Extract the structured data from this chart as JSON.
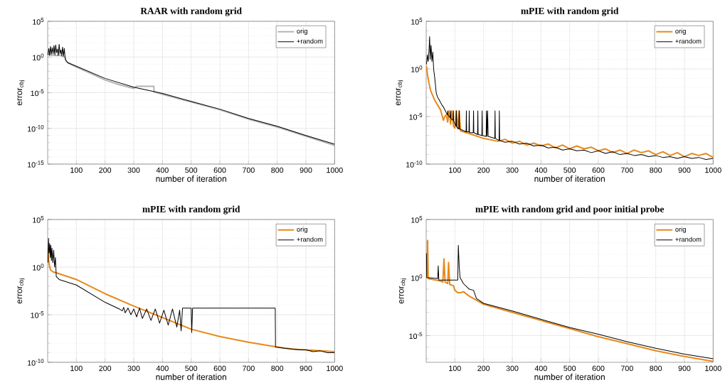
{
  "chart_data": [
    {
      "type": "line",
      "title": "RAAR with random grid",
      "xlabel": "number of iteration",
      "ylabel": "error$_{obj}$",
      "log": "y",
      "grid": true,
      "legend": "top right",
      "marker": "none",
      "line_style": "solid",
      "xlim": [
        0,
        1000
      ],
      "xticks": [
        100,
        200,
        300,
        400,
        500,
        600,
        700,
        800,
        900,
        1000
      ],
      "ylim": [
        1e-15,
        100000
      ],
      "yticks": [
        {
          "value": 1e-15,
          "label": "10$^{-15}$"
        },
        {
          "value": 1e-10,
          "label": "10$^{-10}$"
        },
        {
          "value": 1e-05,
          "label": "10$^{-5}$"
        },
        {
          "value": 1,
          "label": "10$^{0}$"
        },
        {
          "value": 100000,
          "label": "10$^{5}$"
        }
      ],
      "series": [
        {
          "name": "orig",
          "color": "#b3b3b3",
          "x": [
            1,
            5,
            10,
            15,
            20,
            30,
            40,
            50,
            60,
            65,
            70,
            100,
            150,
            200,
            250,
            300,
            310,
            370,
            371,
            400,
            500,
            600,
            700,
            800,
            900,
            1000
          ],
          "values": [
            3,
            2,
            2.5,
            1.6,
            2,
            1.6,
            2,
            1.3,
            1,
            0.25,
            0.16,
            0.04,
            0.005,
            0.0006,
            0.00013,
            4e-05,
            8e-05,
            8e-05,
            1.3e-05,
            6e-06,
            5e-07,
            4e-08,
            2e-09,
            1.6e-10,
            8e-12,
            4e-13
          ]
        },
        {
          "name": "+random",
          "color": "#000000",
          "x": [
            1,
            4,
            7,
            10,
            13,
            16,
            19,
            22,
            25,
            28,
            31,
            34,
            37,
            40,
            43,
            46,
            49,
            52,
            55,
            58,
            60,
            62,
            70,
            100,
            200,
            300,
            400,
            500,
            600,
            700,
            800,
            900,
            1000
          ],
          "values": [
            2,
            16,
            1.6,
            30,
            2.5,
            20,
            3,
            40,
            2,
            50,
            4,
            13,
            1.6,
            60,
            3,
            10,
            1.6,
            25,
            1.3,
            16,
            1.6,
            0.4,
            0.16,
            0.05,
            0.001,
            6e-05,
            8e-06,
            6e-07,
            5e-08,
            2.5e-09,
            2e-10,
            1e-11,
            6e-13
          ]
        }
      ]
    },
    {
      "type": "line",
      "title": "mPIE with random grid",
      "xlabel": "number of iteration",
      "ylabel": "error$_{obj}$",
      "log": "y",
      "grid": true,
      "legend": "top right",
      "marker": "none",
      "line_style": "solid",
      "xlim": [
        0,
        1000
      ],
      "xticks": [
        100,
        200,
        300,
        400,
        500,
        600,
        700,
        800,
        900,
        1000
      ],
      "ylim": [
        1e-10,
        100000
      ],
      "yticks": [
        {
          "value": 1e-10,
          "label": "10$^{-10}$"
        },
        {
          "value": 1e-05,
          "label": "10$^{-5}$"
        },
        {
          "value": 1,
          "label": "10$^{0}$"
        },
        {
          "value": 100000,
          "label": "10$^{5}$"
        }
      ],
      "series": [
        {
          "name": "orig",
          "color": "#e8891a",
          "x": [
            1,
            5,
            10,
            15,
            20,
            30,
            40,
            50,
            60,
            65,
            70,
            75,
            80,
            85,
            90,
            95,
            100,
            105,
            110,
            115,
            120,
            150,
            200,
            250,
            275,
            300,
            325,
            350,
            375,
            400,
            425,
            450,
            475,
            500,
            525,
            550,
            575,
            600,
            625,
            650,
            675,
            700,
            725,
            750,
            775,
            800,
            825,
            850,
            875,
            900,
            925,
            950,
            975,
            1000
          ],
          "values": [
            2,
            0.2,
            0.03,
            0.006,
            0.0025,
            0.0005,
            0.00016,
            5e-05,
            4e-06,
            1e-05,
            1.6e-05,
            2.5e-06,
            4e-05,
            1.6e-06,
            4e-05,
            1e-06,
            6e-07,
            4e-05,
            5e-07,
            4e-05,
            3e-07,
            1.6e-07,
            5e-08,
            2.5e-08,
            4e-08,
            1.6e-08,
            2.5e-08,
            1e-08,
            1.6e-08,
            8e-09,
            1.3e-08,
            5e-09,
            1e-08,
            4e-09,
            8e-09,
            4e-09,
            6e-09,
            2.5e-09,
            4e-09,
            1.6e-09,
            3e-09,
            1.3e-09,
            3e-09,
            1.6e-09,
            2.5e-09,
            1e-09,
            2e-09,
            8e-10,
            1.6e-09,
            6e-10,
            1.3e-09,
            8e-10,
            1.3e-09,
            5e-10
          ]
        },
        {
          "name": "+random",
          "color": "#000000",
          "x": [
            1,
            4,
            7,
            10,
            12,
            14,
            17,
            20,
            23,
            26,
            30,
            35,
            40,
            45,
            50,
            55,
            60,
            70,
            74,
            75,
            76,
            84,
            85,
            86,
            94,
            95,
            96,
            104,
            105,
            106,
            114,
            115,
            116,
            139,
            140,
            141,
            149,
            150,
            151,
            164,
            165,
            166,
            179,
            180,
            181,
            194,
            195,
            196,
            209,
            210,
            212,
            214,
            216,
            239,
            240,
            241,
            254,
            255,
            256,
            275,
            300,
            325,
            350,
            375,
            400,
            425,
            450,
            475,
            500,
            525,
            550,
            575,
            600,
            625,
            650,
            675,
            700,
            725,
            750,
            775,
            800,
            825,
            850,
            875,
            900,
            925,
            950,
            975,
            1000
          ],
          "values": [
            3,
            30,
            6,
            100,
            2500,
            10,
            300,
            6,
            60,
            1,
            0.1,
            0.003,
            0.001,
            0.0006,
            0.0003,
            0.00016,
            0.0001,
            2.5e-05,
            1.6e-05,
            4e-05,
            1.3e-05,
            8e-06,
            4e-05,
            6e-06,
            4e-06,
            4e-05,
            3e-06,
            1e-06,
            4e-05,
            8e-07,
            5e-07,
            4e-05,
            5e-07,
            2.5e-07,
            4e-05,
            2.5e-07,
            2.5e-07,
            4e-05,
            2e-07,
            2e-07,
            4e-05,
            2e-07,
            1.3e-07,
            4e-05,
            1.3e-07,
            1e-07,
            4e-05,
            1e-07,
            8e-08,
            4e-05,
            8e-08,
            4e-05,
            8e-08,
            5e-08,
            4e-05,
            5e-08,
            3e-08,
            4e-05,
            3e-08,
            2e-08,
            2.5e-08,
            1.3e-08,
            1.6e-08,
            8e-09,
            1e-08,
            5e-09,
            6e-09,
            3e-09,
            4e-09,
            2.5e-09,
            3e-09,
            1.6e-09,
            2.5e-09,
            1.3e-09,
            2e-09,
            1e-09,
            1.3e-09,
            8e-10,
            1e-09,
            6e-10,
            8e-10,
            5e-10,
            6e-10,
            4e-10,
            6e-10,
            4e-10,
            5e-10,
            3e-10,
            4e-10
          ]
        }
      ]
    },
    {
      "type": "line",
      "title": "mPIE with random grid",
      "xlabel": "number of iteration",
      "ylabel": "error$_{obj}$",
      "log": "y",
      "grid": true,
      "legend": "top right",
      "marker": "none",
      "line_style": "solid",
      "xlim": [
        0,
        1000
      ],
      "xticks": [
        100,
        200,
        300,
        400,
        500,
        600,
        700,
        800,
        900,
        1000
      ],
      "ylim": [
        1e-10,
        100000
      ],
      "yticks": [
        {
          "value": 1e-10,
          "label": "10$^{-10}$"
        },
        {
          "value": 1e-05,
          "label": "10$^{-5}$"
        },
        {
          "value": 1,
          "label": "10$^{0}$"
        },
        {
          "value": 100000,
          "label": "10$^{5}$"
        }
      ],
      "series": [
        {
          "name": "orig",
          "color": "#e8891a",
          "x": [
            1,
            3,
            5,
            10,
            20,
            30,
            100,
            200,
            300,
            400,
            500,
            600,
            700,
            800,
            850,
            900,
            950,
            1000
          ],
          "values": [
            100,
            10,
            2,
            0.5,
            0.3,
            0.25,
            0.05,
            0.0016,
            8e-05,
            5e-06,
            3e-07,
            5e-08,
            1.3e-08,
            4e-09,
            2.5e-09,
            2e-09,
            1.6e-09,
            1.3e-09
          ]
        },
        {
          "name": "+random",
          "color": "#000000",
          "x": [
            1,
            3,
            5,
            7,
            9,
            11,
            13,
            15,
            18,
            21,
            24,
            27,
            30,
            40,
            100,
            200,
            250,
            260,
            265,
            270,
            280,
            290,
            300,
            310,
            320,
            330,
            345,
            360,
            375,
            390,
            405,
            420,
            435,
            450,
            460,
            465,
            470,
            500,
            502,
            505,
            600,
            700,
            793,
            794,
            825,
            850,
            875,
            900,
            925,
            950,
            975,
            1000
          ],
          "values": [
            3,
            1000,
            30,
            300,
            10,
            200,
            5,
            100,
            3,
            60,
            1,
            10,
            0.1,
            0.05,
            0.013,
            0.0002,
            4e-05,
            2.5e-05,
            6e-05,
            1.6e-05,
            5e-05,
            1e-05,
            4e-05,
            6e-06,
            5e-05,
            4e-06,
            4e-05,
            2.5e-06,
            4e-05,
            1.3e-06,
            3e-05,
            8e-07,
            4e-05,
            5e-07,
            3e-05,
            2e-07,
            5e-05,
            5e-05,
            1.3e-07,
            5e-05,
            5e-05,
            5e-05,
            5e-05,
            4e-09,
            3e-09,
            2.5e-09,
            2e-09,
            2e-09,
            1.3e-09,
            1.6e-09,
            1e-09,
            1e-09
          ]
        }
      ]
    },
    {
      "type": "line",
      "title": "mPIE with random grid and poor initial probe",
      "xlabel": "number of iteration",
      "ylabel": "error$_{obj}$",
      "log": "y",
      "grid": true,
      "legend": "top right",
      "marker": "none",
      "line_style": "solid",
      "xlim": [
        0,
        1000
      ],
      "xticks": [
        100,
        200,
        300,
        400,
        500,
        600,
        700,
        800,
        900,
        1000
      ],
      "ylim": [
        5e-08,
        100000
      ],
      "yticks": [
        {
          "value": 1e-05,
          "label": "10$^{-5}$"
        },
        {
          "value": 1,
          "label": "10$^{0}$"
        },
        {
          "value": 100000,
          "label": "10$^{5}$"
        }
      ],
      "series": [
        {
          "name": "orig",
          "color": "#e8891a",
          "x": [
            1,
            5,
            7,
            50,
            58,
            62,
            66,
            75,
            78,
            82,
            95,
            100,
            110,
            120,
            130,
            150,
            200,
            300,
            400,
            500,
            600,
            700,
            800,
            900,
            1000
          ],
          "values": [
            1,
            1600,
            0.8,
            0.5,
            0.4,
            40,
            0.4,
            0.3,
            20,
            0.25,
            0.2,
            0.08,
            0.05,
            0.05,
            0.06,
            0.025,
            0.005,
            0.001,
            0.0002,
            4e-05,
            8e-06,
            2e-06,
            5e-07,
            1.6e-07,
            6e-08
          ]
        },
        {
          "name": "+random",
          "color": "#000000",
          "x": [
            1,
            2,
            40,
            42,
            44,
            110,
            112,
            115,
            118,
            130,
            150,
            165,
            175,
            200,
            300,
            400,
            500,
            600,
            700,
            800,
            900,
            1000
          ],
          "values": [
            120,
            1,
            0.8,
            10,
            0.6,
            0.6,
            600,
            10,
            1,
            0.3,
            0.1,
            0.08,
            0.016,
            0.006,
            0.0013,
            0.00025,
            5e-05,
            1.3e-05,
            3e-06,
            8e-07,
            2.5e-07,
            1e-07
          ]
        }
      ]
    }
  ]
}
